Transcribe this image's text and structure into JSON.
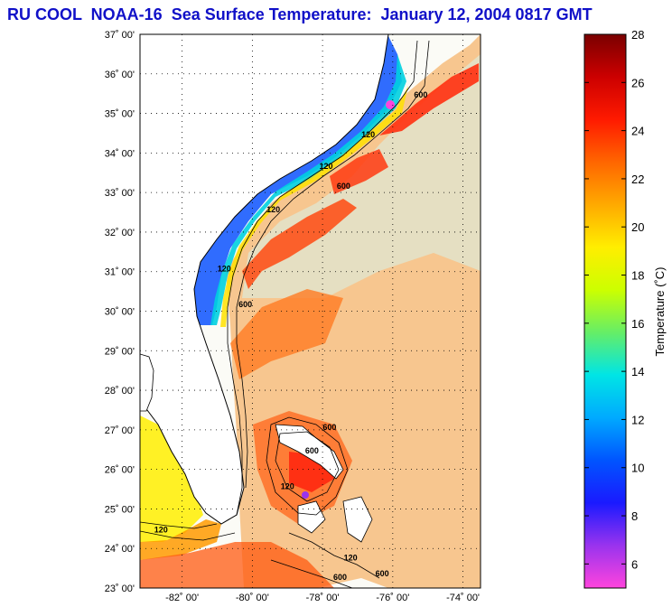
{
  "title": "RU COOL  NOAA-16  Sea Surface Temperature:  January 12, 2004 0817 GMT",
  "map": {
    "lat_labels": [
      "37˚ 00'",
      "36˚ 00'",
      "35˚ 00'",
      "34˚ 00'",
      "33˚ 00'",
      "32˚ 00'",
      "31˚ 00'",
      "30˚ 00'",
      "29˚ 00'",
      "28˚ 00'",
      "27˚ 00'",
      "26˚ 00'",
      "25˚ 00'",
      "24˚ 00'",
      "23˚ 00'"
    ],
    "lon_labels": [
      "-82˚ 00'",
      "-80˚ 00'",
      "-78˚ 00'",
      "-76˚ 00'",
      "-74˚ 00'"
    ],
    "lat_values": [
      37,
      36,
      35,
      34,
      33,
      32,
      31,
      30,
      29,
      28,
      27,
      26,
      25,
      24,
      23
    ],
    "lon_values": [
      -82,
      -80,
      -78,
      -76,
      -74
    ],
    "lat_range": [
      23,
      37
    ],
    "lon_range": [
      -83.2,
      -73.5
    ],
    "contour_labels": [
      {
        "text": "600",
        "lon": -75.2,
        "lat": 35.4
      },
      {
        "text": "120",
        "lon": -76.7,
        "lat": 34.4
      },
      {
        "text": "120",
        "lon": -77.9,
        "lat": 33.6
      },
      {
        "text": "600",
        "lon": -77.4,
        "lat": 33.1
      },
      {
        "text": "120",
        "lon": -79.4,
        "lat": 32.5
      },
      {
        "text": "120",
        "lon": -80.8,
        "lat": 31.0
      },
      {
        "text": "600",
        "lon": -80.2,
        "lat": 30.1
      },
      {
        "text": "600",
        "lon": -77.8,
        "lat": 27.0
      },
      {
        "text": "600",
        "lon": -78.3,
        "lat": 26.4
      },
      {
        "text": "120",
        "lon": -79.0,
        "lat": 25.5
      },
      {
        "text": "120",
        "lon": -82.6,
        "lat": 24.4
      },
      {
        "text": "120",
        "lon": -77.2,
        "lat": 23.7
      },
      {
        "text": "600",
        "lon": -76.3,
        "lat": 23.3
      },
      {
        "text": "600",
        "lon": -77.5,
        "lat": 23.2
      }
    ]
  },
  "colorbar": {
    "label": "Temperature (˚C)",
    "tick_labels": [
      "28",
      "26",
      "24",
      "22",
      "20",
      "18",
      "16",
      "14",
      "12",
      "10",
      "8",
      "6"
    ],
    "tick_values": [
      28,
      26,
      24,
      22,
      20,
      18,
      16,
      14,
      12,
      10,
      8,
      6
    ],
    "range": [
      5,
      28
    ],
    "stops": [
      "#ff44dd",
      "#9933ee",
      "#1a1aff",
      "#0055ff",
      "#00aaff",
      "#00e5e5",
      "#66ee66",
      "#ccff00",
      "#ffee00",
      "#ffaa00",
      "#ff6600",
      "#ff1a00",
      "#cc0000",
      "#7a0000"
    ]
  },
  "colors": {
    "title": "#1010c8",
    "land": "#ffffff",
    "background": "#ffffff"
  }
}
